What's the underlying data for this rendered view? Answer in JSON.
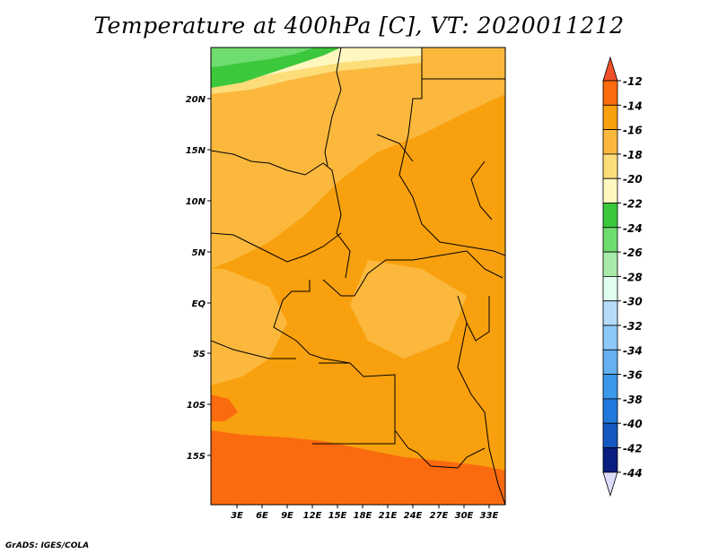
{
  "title": "Temperature at 400hPa [C], VT: 2020011212",
  "credit": "GrADS: IGES/COLA",
  "map": {
    "lat_labels": [
      "20N",
      "15N",
      "10N",
      "5N",
      "EQ",
      "5S",
      "10S",
      "15S"
    ],
    "lon_labels": [
      "3E",
      "6E",
      "9E",
      "12E",
      "15E",
      "18E",
      "21E",
      "24E",
      "27E",
      "30E",
      "33E"
    ]
  },
  "colorbar": {
    "levels": [
      "-12",
      "-14",
      "-16",
      "-18",
      "-20",
      "-22",
      "-24",
      "-26",
      "-28",
      "-30",
      "-32",
      "-34",
      "-36",
      "-38",
      "-40",
      "-42",
      "-44"
    ],
    "colors": {
      "above_-12": "#f0502a",
      "-12_-14": "#fa6a0e",
      "-14_-16": "#f8a00e",
      "-16_-18": "#fbb83c",
      "-18_-20": "#fddc7a",
      "-20_-22": "#fff7c0",
      "-22_-24": "#3cc83c",
      "-24_-26": "#6fdc6f",
      "-26_-28": "#a8eba8",
      "-28_-30": "#e0fff0",
      "-30_-32": "#b4dcfa",
      "-32_-34": "#8cc8f8",
      "-34_-36": "#64b0f0",
      "-36_-38": "#3c98ea",
      "-38_-40": "#2078dc",
      "-40_-42": "#1458c0",
      "-42_-44": "#0a1e80",
      "below_-44": "#dcdcfa"
    }
  }
}
